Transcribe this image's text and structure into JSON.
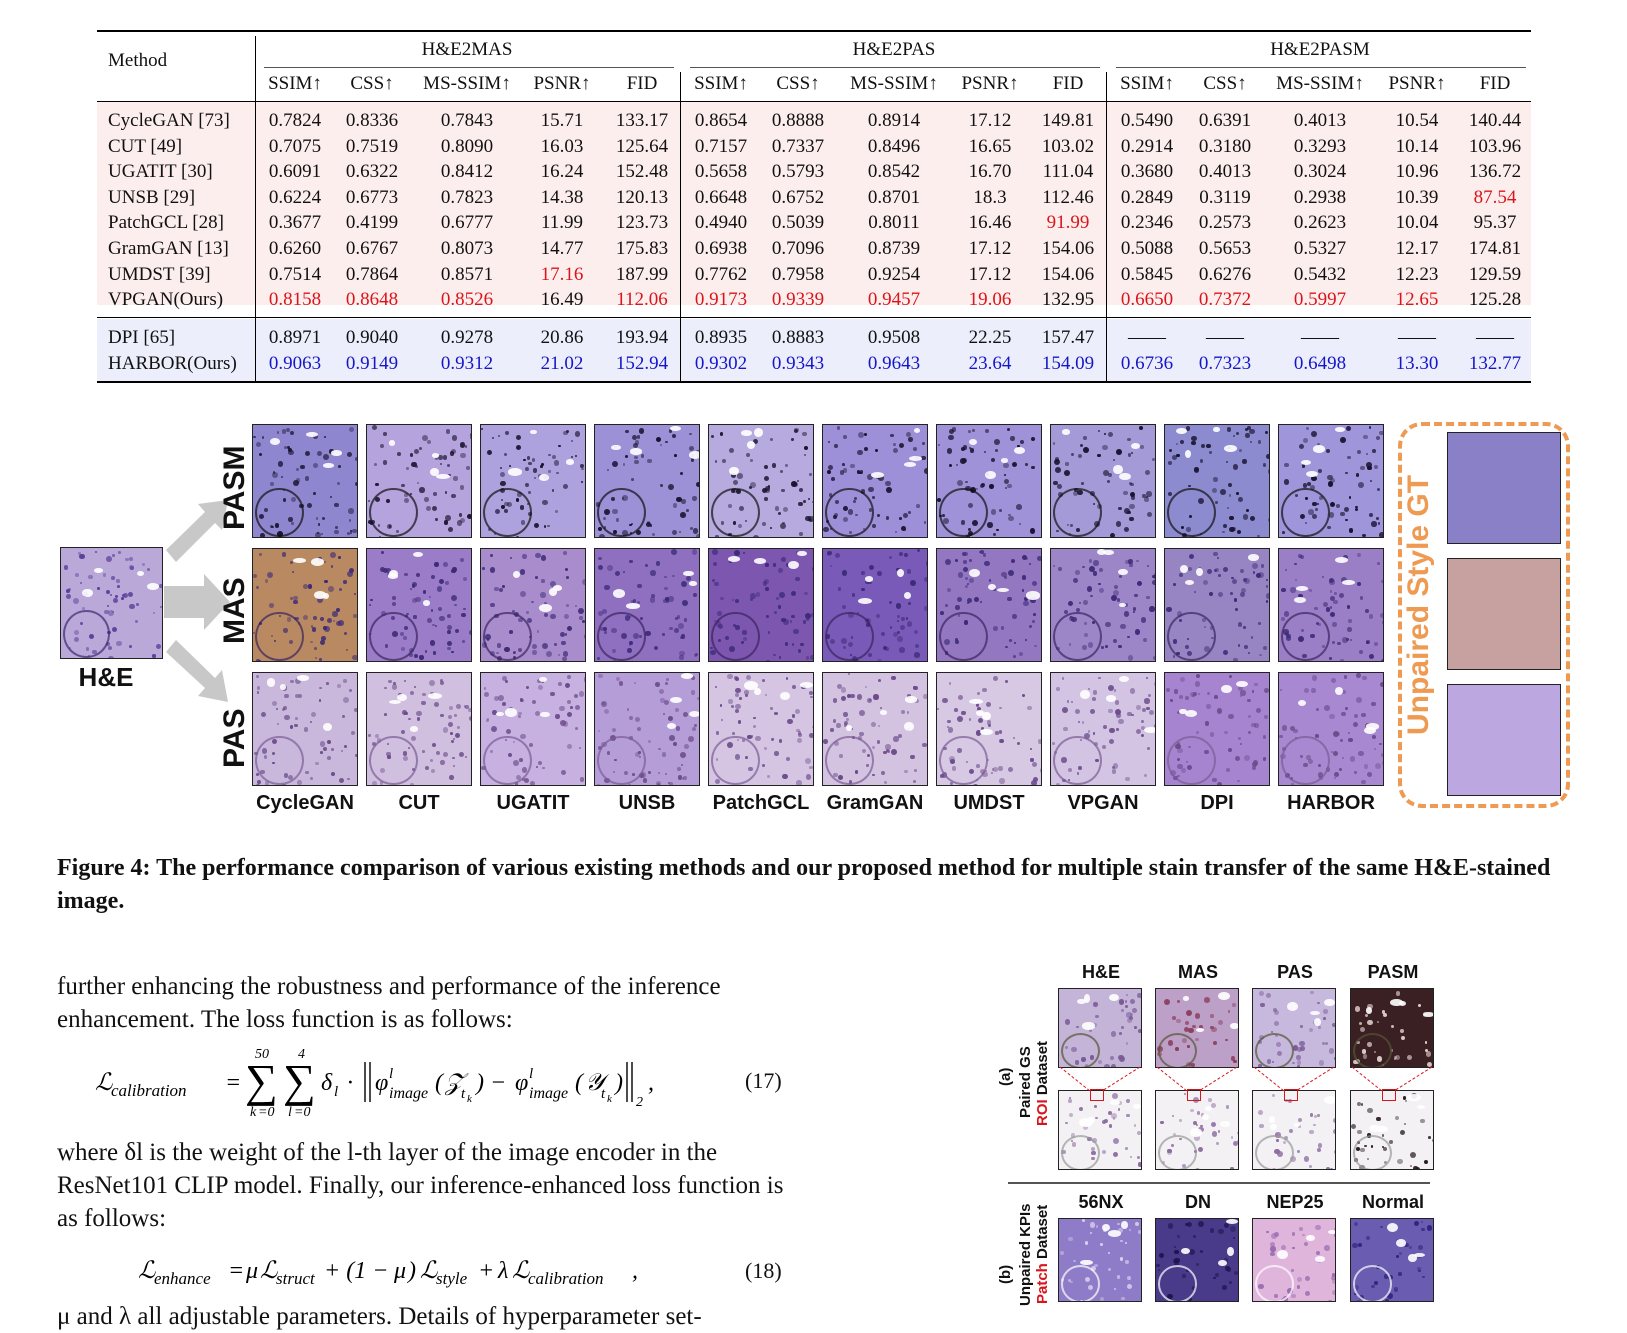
{
  "table": {
    "method_header": "Method",
    "groups": [
      "H&E2MAS",
      "H&E2PAS",
      "H&E2PASM"
    ],
    "metrics": [
      "SSIM↑",
      "CSS↑",
      "MS-SSIM↑",
      "PSNR↑",
      "FID"
    ],
    "rows": [
      {
        "method": "CycleGAN [73]",
        "vals": [
          "0.7824",
          "0.8336",
          "0.7843",
          "15.71",
          "133.17",
          "0.8654",
          "0.8888",
          "0.8914",
          "17.12",
          "149.81",
          "0.5490",
          "0.6391",
          "0.4013",
          "10.54",
          "140.44"
        ],
        "red": [],
        "blue": []
      },
      {
        "method": "CUT [49]",
        "vals": [
          "0.7075",
          "0.7519",
          "0.8090",
          "16.03",
          "125.64",
          "0.7157",
          "0.7337",
          "0.8496",
          "16.65",
          "103.02",
          "0.2914",
          "0.3180",
          "0.3293",
          "10.14",
          "103.96"
        ],
        "red": [],
        "blue": []
      },
      {
        "method": "UGATIT [30]",
        "vals": [
          "0.6091",
          "0.6322",
          "0.8412",
          "16.24",
          "152.48",
          "0.5658",
          "0.5793",
          "0.8542",
          "16.70",
          "111.04",
          "0.3680",
          "0.4013",
          "0.3024",
          "10.96",
          "136.72"
        ],
        "red": [],
        "blue": []
      },
      {
        "method": "UNSB [29]",
        "vals": [
          "0.6224",
          "0.6773",
          "0.7823",
          "14.38",
          "120.13",
          "0.6648",
          "0.6752",
          "0.8701",
          "18.3",
          "112.46",
          "0.2849",
          "0.3119",
          "0.2938",
          "10.39",
          "87.54"
        ],
        "red": [
          14
        ],
        "blue": []
      },
      {
        "method": "PatchGCL [28]",
        "vals": [
          "0.3677",
          "0.4199",
          "0.6777",
          "11.99",
          "123.73",
          "0.4940",
          "0.5039",
          "0.8011",
          "16.46",
          "91.99",
          "0.2346",
          "0.2573",
          "0.2623",
          "10.04",
          "95.37"
        ],
        "red": [
          9
        ],
        "blue": []
      },
      {
        "method": "GramGAN [13]",
        "vals": [
          "0.6260",
          "0.6767",
          "0.8073",
          "14.77",
          "175.83",
          "0.6938",
          "0.7096",
          "0.8739",
          "17.12",
          "154.06",
          "0.5088",
          "0.5653",
          "0.5327",
          "12.17",
          "174.81"
        ],
        "red": [],
        "blue": []
      },
      {
        "method": "UMDST [39]",
        "vals": [
          "0.7514",
          "0.7864",
          "0.8571",
          "17.16",
          "187.99",
          "0.7762",
          "0.7958",
          "0.9254",
          "17.12",
          "154.06",
          "0.5845",
          "0.6276",
          "0.5432",
          "12.23",
          "129.59"
        ],
        "red": [
          3
        ],
        "blue": []
      },
      {
        "method": "VPGAN(Ours)",
        "vals": [
          "0.8158",
          "0.8648",
          "0.8526",
          "16.49",
          "112.06",
          "0.9173",
          "0.9339",
          "0.9457",
          "19.06",
          "132.95",
          "0.6650",
          "0.7372",
          "0.5997",
          "12.65",
          "125.28"
        ],
        "red": [
          0,
          1,
          2,
          4,
          5,
          6,
          7,
          8,
          10,
          11,
          12,
          13
        ],
        "blue": []
      },
      {
        "method": "DPI [65]",
        "vals": [
          "0.8971",
          "0.9040",
          "0.9278",
          "20.86",
          "193.94",
          "0.8935",
          "0.8883",
          "0.9508",
          "22.25",
          "157.47",
          "——",
          "——",
          "——",
          "——",
          "——"
        ],
        "red": [],
        "blue": []
      },
      {
        "method": "HARBOR(Ours)",
        "vals": [
          "0.9063",
          "0.9149",
          "0.9312",
          "21.02",
          "152.94",
          "0.9302",
          "0.9343",
          "0.9643",
          "23.64",
          "154.09",
          "0.6736",
          "0.7323",
          "0.6498",
          "13.30",
          "132.77"
        ],
        "red": [],
        "blue": [
          0,
          1,
          2,
          3,
          4,
          5,
          6,
          7,
          8,
          9,
          10,
          11,
          12,
          13,
          14
        ]
      }
    ]
  },
  "figure4": {
    "input_label": "H&E",
    "row_labels": [
      "PASM",
      "MAS",
      "PAS"
    ],
    "column_labels": [
      "CycleGAN",
      "CUT",
      "UGATIT",
      "UNSB",
      "PatchGCL",
      "GramGAN",
      "UMDST",
      "VPGAN",
      "DPI",
      "HARBOR"
    ],
    "gt_label": "Unpaired Style GT",
    "caption": "Figure 4: The performance comparison of various existing methods and our proposed method for multiple stain transfer of the same H&E-stained image."
  },
  "text": {
    "para1": "further enhancing the robustness and performance of the inference enhancement. The loss function is as follows:",
    "eq17_num": "(17)",
    "para2": "where δl is the weight of the l-th layer of the image encoder in the ResNet101 CLIP model. Finally, our inference-enhanced loss function is as follows:",
    "eq18_num": "(18)",
    "para3": "μ and λ all adjustable parameters. Details of hyperparameter set-"
  },
  "figure5": {
    "top_cols": [
      "H&E",
      "MAS",
      "PAS",
      "PASM"
    ],
    "bottom_cols": [
      "56NX",
      "DN",
      "NEP25",
      "Normal"
    ],
    "label_a1": "(a)",
    "label_a2": "Paired GS",
    "label_a3_red": "ROI",
    "label_a3": " Dataset",
    "label_b1": "(b)",
    "label_b2": "Unpaired KPIs",
    "label_b3_red": "Patch",
    "label_b3": " Dataset"
  },
  "colors": {
    "top_band": "#fdeeee",
    "bottom_band": "#eceefc",
    "red": "#d9151b",
    "blue": "#1516c8",
    "gt_orange": "#ee9a52"
  }
}
